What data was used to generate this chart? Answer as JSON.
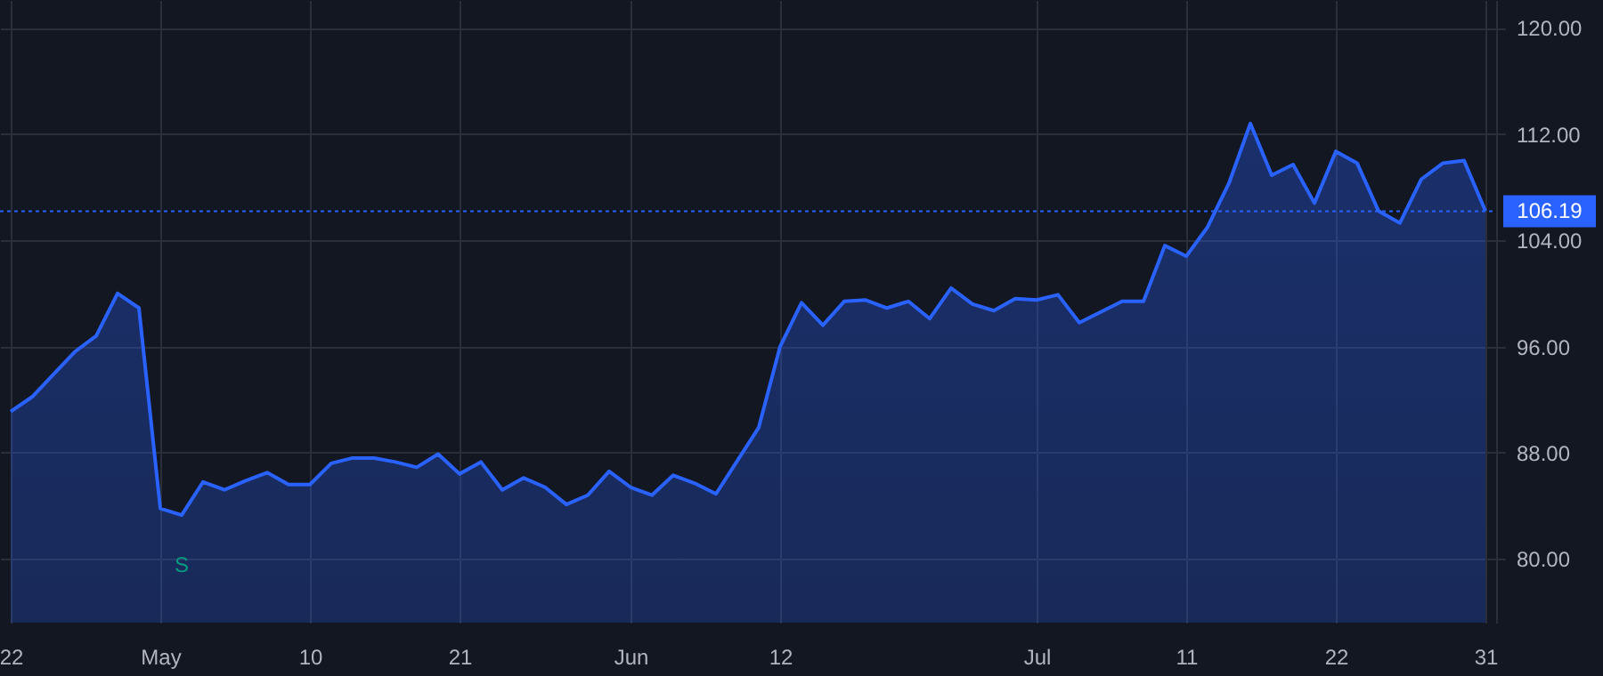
{
  "chart_data": {
    "type": "area",
    "categories": [
      "22",
      null,
      null,
      null,
      null,
      null,
      null,
      "May",
      null,
      null,
      null,
      null,
      null,
      null,
      "10",
      null,
      null,
      null,
      null,
      null,
      null,
      "21",
      null,
      null,
      null,
      null,
      null,
      null,
      null,
      "Jun",
      null,
      null,
      null,
      null,
      null,
      null,
      "12",
      null,
      null,
      null,
      null,
      null,
      null,
      null,
      null,
      null,
      null,
      null,
      "Jul",
      null,
      null,
      null,
      null,
      null,
      null,
      "11",
      null,
      null,
      null,
      null,
      null,
      null,
      "22",
      null,
      null,
      null,
      null,
      null,
      null,
      "31"
    ],
    "series": [
      {
        "color": "#2962ff",
        "values": [
          91.1,
          92.2,
          93.9,
          95.6,
          96.8,
          100.0,
          98.9,
          83.8,
          83.3,
          85.8,
          85.2,
          85.9,
          86.5,
          85.6,
          85.6,
          87.2,
          87.6,
          87.6,
          87.3,
          86.9,
          87.9,
          86.4,
          87.3,
          85.2,
          86.1,
          85.4,
          84.1,
          84.8,
          86.6,
          85.4,
          84.8,
          86.3,
          85.7,
          84.9,
          87.4,
          89.9,
          96.0,
          99.3,
          97.6,
          99.4,
          99.5,
          98.9,
          99.4,
          98.1,
          100.4,
          99.2,
          98.7,
          99.6,
          99.5,
          99.9,
          97.8,
          98.6,
          99.4,
          99.4,
          103.6,
          102.8,
          105.0,
          108.3,
          112.8,
          108.9,
          109.7,
          106.8,
          110.7,
          109.8,
          106.2,
          105.3,
          108.6,
          109.8,
          110.0,
          106.2
        ]
      }
    ],
    "ylim": [
      75.2,
      122.1
    ],
    "yticks": [
      {
        "value": 80,
        "label": "80.00"
      },
      {
        "value": 88,
        "label": "88.00"
      },
      {
        "value": 96,
        "label": "96.00"
      },
      {
        "value": 104,
        "label": "104.00"
      },
      {
        "value": 112,
        "label": "112.00"
      },
      {
        "value": 120,
        "label": "120.00"
      }
    ],
    "ref_lines": [
      {
        "axis": "y",
        "value": 106.19,
        "label": "106.19",
        "color": "#2962ff",
        "line_style": "dotted"
      }
    ],
    "annotations": [
      {
        "text": "S",
        "y": 83.3
      }
    ],
    "grid": true,
    "marker": "none"
  }
}
